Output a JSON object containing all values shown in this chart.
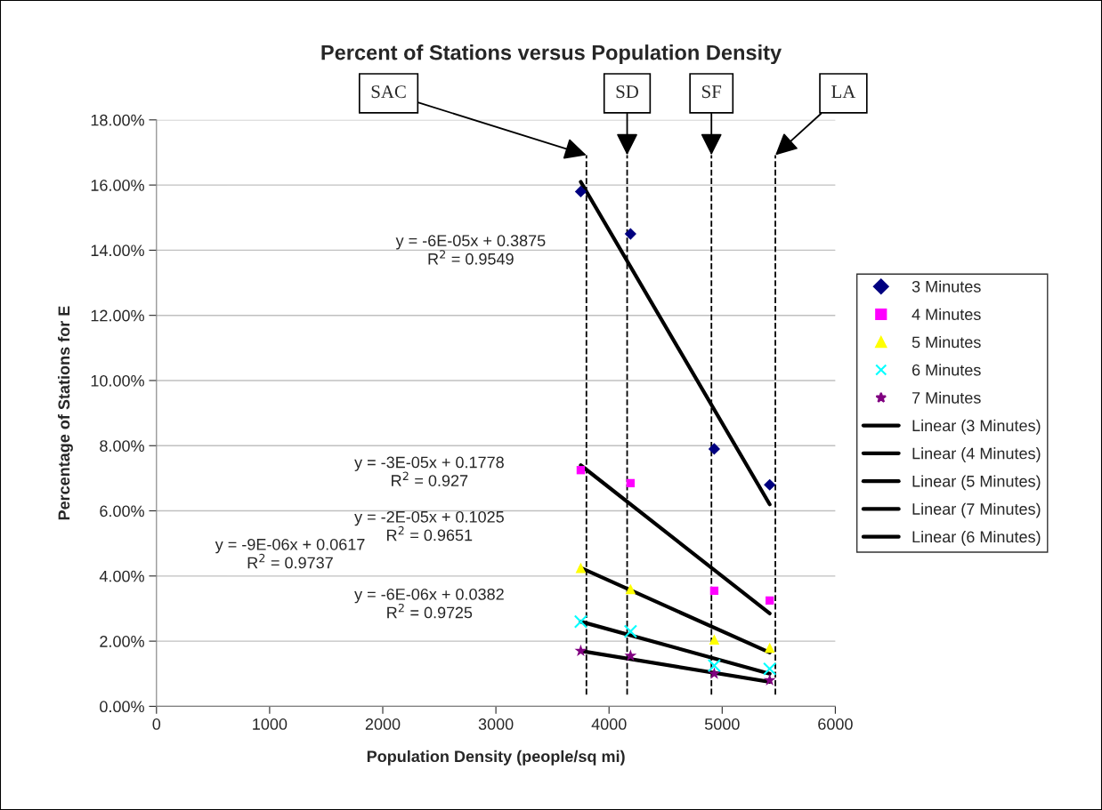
{
  "chart_data": {
    "type": "scatter",
    "title": "Percent of Stations versus Population Density",
    "xlabel": "Population Density (people/sq mi)",
    "ylabel": "Percentage of Stations for E",
    "series": [
      {
        "name": "3 Minutes",
        "color": "#000080",
        "marker": "diamond",
        "x": [
          3750,
          4190,
          4930,
          5420
        ],
        "values": [
          15.8,
          14.5,
          7.9,
          6.8
        ]
      },
      {
        "name": "4 Minutes",
        "color": "#ff00ff",
        "marker": "square",
        "x": [
          3750,
          4190,
          4930,
          5420
        ],
        "values": [
          7.25,
          6.85,
          3.55,
          3.25
        ]
      },
      {
        "name": "5 Minutes",
        "color": "#ffff00",
        "marker": "triangle",
        "x": [
          3750,
          4190,
          4930,
          5420
        ],
        "values": [
          4.25,
          3.6,
          2.05,
          1.8
        ]
      },
      {
        "name": "6 Minutes",
        "color": "#00ffff",
        "marker": "cross",
        "x": [
          3750,
          4190,
          4930,
          5420
        ],
        "values": [
          2.6,
          2.3,
          1.25,
          1.15
        ]
      },
      {
        "name": "7 Minutes",
        "color": "#800080",
        "marker": "star",
        "x": [
          3750,
          4190,
          4930,
          5420
        ],
        "values": [
          1.7,
          1.55,
          1.0,
          0.8
        ]
      },
      {
        "name": "Linear (3 Minutes)",
        "type": "line",
        "color": "#000000",
        "marker": "none",
        "x": [
          3750,
          5420
        ],
        "values": [
          16.1,
          6.2
        ]
      },
      {
        "name": "Linear (4 Minutes)",
        "type": "line",
        "color": "#000000",
        "marker": "none",
        "x": [
          3750,
          5420
        ],
        "values": [
          7.4,
          2.85
        ]
      },
      {
        "name": "Linear (5 Minutes)",
        "type": "line",
        "color": "#000000",
        "marker": "none",
        "x": [
          3750,
          5420
        ],
        "values": [
          4.25,
          1.65
        ]
      },
      {
        "name": "Linear (7 Minutes)",
        "type": "line",
        "color": "#000000",
        "marker": "none",
        "x": [
          3750,
          5420
        ],
        "values": [
          1.7,
          0.75
        ]
      },
      {
        "name": "Linear (6 Minutes)",
        "type": "line",
        "color": "#000000",
        "marker": "none",
        "x": [
          3750,
          5420
        ],
        "values": [
          2.6,
          1.0
        ]
      }
    ],
    "xlim": [
      0,
      6000
    ],
    "xticks": [
      0,
      1000,
      2000,
      3000,
      4000,
      5000,
      6000
    ],
    "ylim": [
      0,
      18
    ],
    "yticks": [
      {
        "value": 0,
        "label": "0.00%"
      },
      {
        "value": 2,
        "label": "2.00%"
      },
      {
        "value": 4,
        "label": "4.00%"
      },
      {
        "value": 6,
        "label": "6.00%"
      },
      {
        "value": 8,
        "label": "8.00%"
      },
      {
        "value": 10,
        "label": "10.00%"
      },
      {
        "value": 12,
        "label": "12.00%"
      },
      {
        "value": 14,
        "label": "14.00%"
      },
      {
        "value": 16,
        "label": "16.00%"
      },
      {
        "value": 18,
        "label": "18.00%"
      }
    ],
    "ref_lines": [
      {
        "axis": "x",
        "value": 3800,
        "label": "SAC",
        "color": "#000000",
        "line_style": "dashed"
      },
      {
        "axis": "x",
        "value": 4160,
        "label": "SD",
        "color": "#000000",
        "line_style": "dashed"
      },
      {
        "axis": "x",
        "value": 4905,
        "label": "SF",
        "color": "#000000",
        "line_style": "dashed"
      },
      {
        "axis": "x",
        "value": 5470,
        "label": "LA",
        "color": "#000000",
        "line_style": "dashed"
      }
    ],
    "annotations": [
      "y = -6E-05x + 0.3875\nR$^{2}$ = 0.9549",
      "y = -3E-05x + 0.1778\nR$^{2}$ = 0.927",
      "y = -2E-05x + 0.1025\nR$^{2}$ = 0.9651",
      "y = -9E-06x + 0.0617\nR$^{2}$ = 0.9737",
      "y = -6E-06x + 0.0382\nR$^{2}$ = 0.9725"
    ],
    "grid": "y",
    "legend": "right"
  }
}
